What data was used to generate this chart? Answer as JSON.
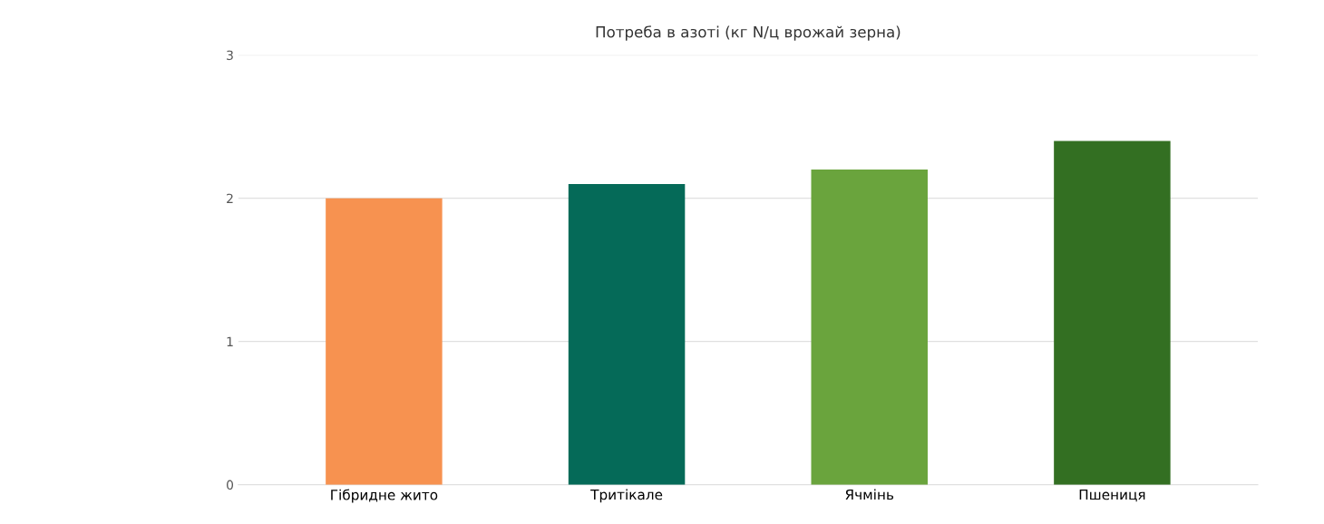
{
  "chart_data": {
    "type": "bar",
    "title": "Потреба в азоті (кг N/ц врожай зерна)",
    "categories": [
      "Гібридне жито",
      "Тритікале",
      "Ячмінь",
      "Пшениця"
    ],
    "values": [
      2.0,
      2.1,
      2.2,
      2.4
    ],
    "colors": [
      "#f79250",
      "#056a58",
      "#6aa43d",
      "#336f22"
    ],
    "ylim": [
      0,
      3
    ],
    "yticks": [
      0,
      1,
      2,
      3
    ],
    "grid": "y"
  }
}
